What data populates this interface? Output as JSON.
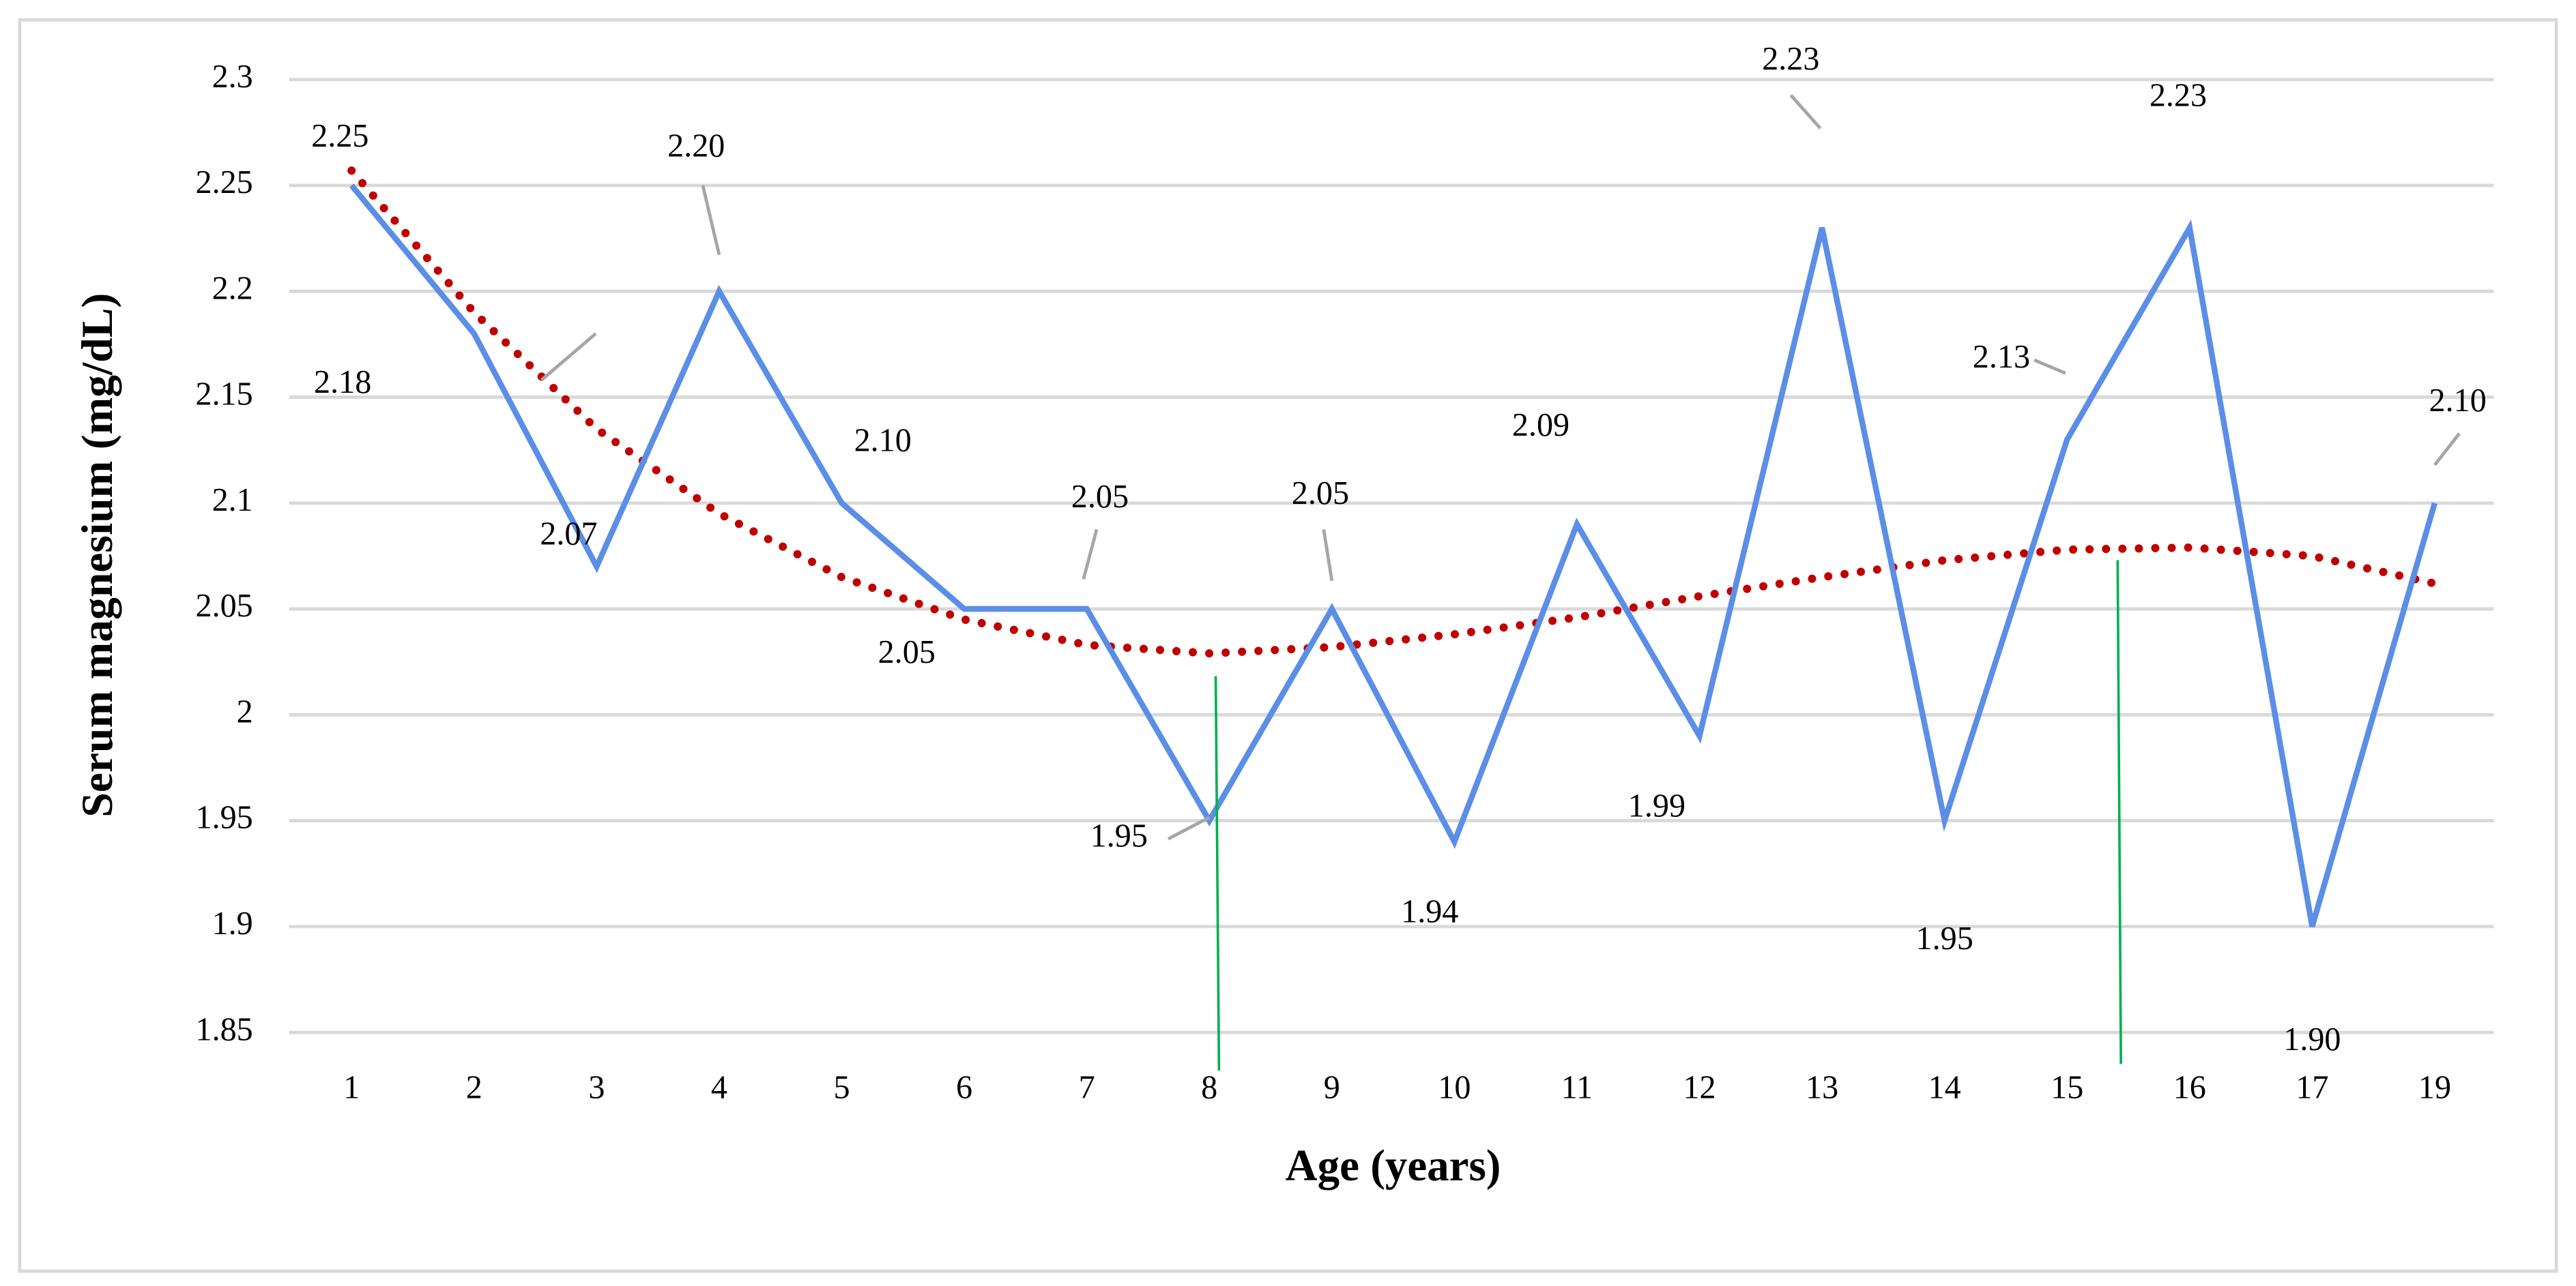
{
  "chart_data": {
    "type": "line",
    "x_label": "Age (years)",
    "y_label": "Serum magnesium (mg/dL)",
    "categories": [
      "1",
      "2",
      "3",
      "4",
      "5",
      "6",
      "7",
      "8",
      "9",
      "10",
      "11",
      "12",
      "13",
      "14",
      "15",
      "16",
      "17",
      "19"
    ],
    "series": [
      {
        "color": "#5b8ee6",
        "values": [
          2.25,
          2.18,
          2.07,
          2.2,
          2.1,
          2.05,
          2.05,
          1.95,
          2.05,
          1.94,
          2.09,
          1.99,
          2.23,
          1.95,
          2.13,
          2.23,
          1.9,
          2.1
        ],
        "value_labels": [
          "2.25",
          "2.18",
          "2.07",
          "2.20",
          "2.10",
          "2.05",
          "2.05",
          "1.95",
          "2.05",
          "1.94",
          "2.09",
          "1.99",
          "2.23",
          "1.95",
          "2.13",
          "2.23",
          "1.90",
          "2.10"
        ]
      }
    ],
    "trendline": {
      "color": "#c00000",
      "values": [
        2.257,
        2.19,
        2.135,
        2.095,
        2.065,
        2.045,
        2.033,
        2.029,
        2.032,
        2.038,
        2.046,
        2.056,
        2.065,
        2.073,
        2.078,
        2.079,
        2.075,
        2.062
      ]
    },
    "ylim": [
      1.85,
      2.3
    ],
    "yticks": [
      1.85,
      1.9,
      1.95,
      2,
      2.05,
      2.1,
      2.15,
      2.2,
      2.25,
      2.3
    ],
    "grid": true
  }
}
